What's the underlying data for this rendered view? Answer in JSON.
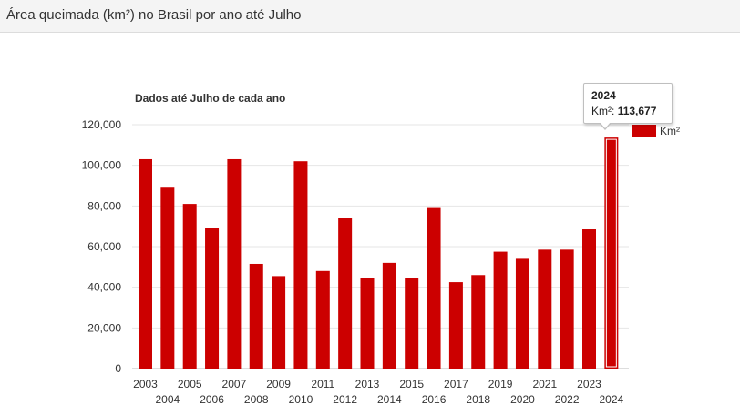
{
  "header": {
    "title": "Área queimada (km²) no Brasil por ano até Julho"
  },
  "colors": {
    "bar": "#cc0000",
    "highlight_outline": "#ffffff",
    "grid": "#e6e6e6"
  },
  "chart_data": {
    "type": "bar",
    "title": "Dados até Julho de cada ano",
    "xlabel": "",
    "ylabel": "",
    "categories": [
      "2003",
      "2004",
      "2005",
      "2006",
      "2007",
      "2008",
      "2009",
      "2010",
      "2011",
      "2012",
      "2013",
      "2014",
      "2015",
      "2016",
      "2017",
      "2018",
      "2019",
      "2020",
      "2021",
      "2022",
      "2023",
      "2024"
    ],
    "series": [
      {
        "name": "Km²",
        "values": [
          103000,
          89000,
          81000,
          69000,
          103000,
          51500,
          45500,
          102000,
          48000,
          74000,
          44500,
          52000,
          44500,
          79000,
          42500,
          46000,
          57500,
          54000,
          58500,
          58500,
          68500,
          113677
        ]
      }
    ],
    "ylim": [
      0,
      120000
    ],
    "yticks": [
      0,
      20000,
      40000,
      60000,
      80000,
      100000,
      120000
    ],
    "ytick_labels": [
      "0",
      "20,000",
      "40,000",
      "60,000",
      "80,000",
      "100,000",
      "120,000"
    ],
    "grid": true,
    "legend": {
      "position": "top-right"
    },
    "highlighted_category": "2024"
  },
  "tooltip": {
    "year": "2024",
    "label": "Km²:",
    "value": "113,677"
  }
}
